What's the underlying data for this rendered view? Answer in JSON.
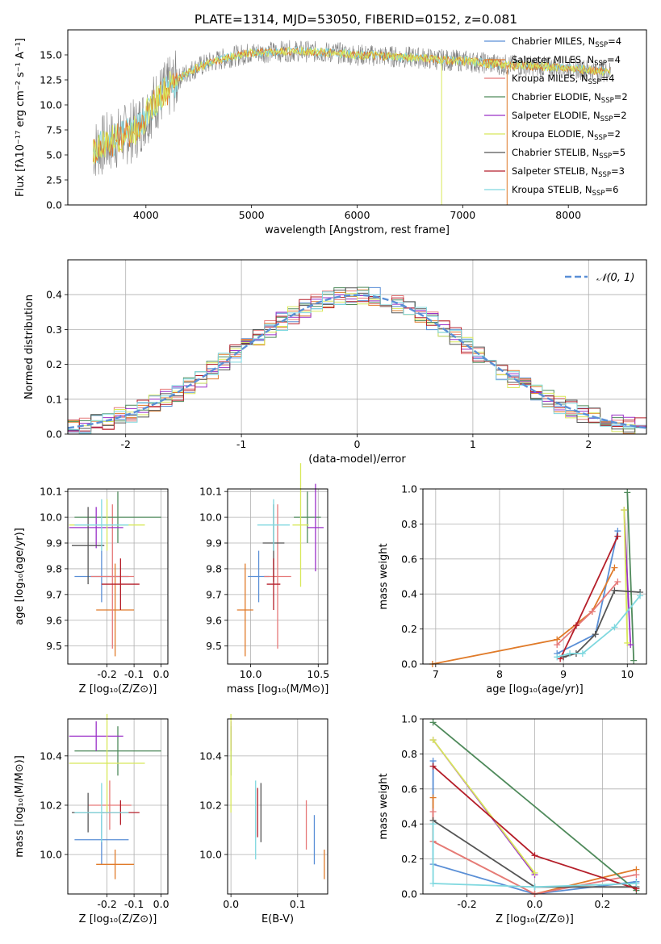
{
  "title": "PLATE=1314, MJD=53050, FIBERID=0152, z=0.081",
  "colors": {
    "s0": "#5a8fd6",
    "s1": "#e07b2a",
    "s2": "#e67a7a",
    "s3": "#4f8a5b",
    "s4": "#9b30c8",
    "s5": "#d8e85a",
    "s6": "#555555",
    "s7": "#b51f2a",
    "s8": "#7fd8df",
    "spectrum": "#808080"
  },
  "chart_data": [
    {
      "type": "line",
      "title": "PLATE=1314, MJD=53050, FIBERID=0152, z=0.081",
      "xlabel": "wavelength [Angstrom, rest frame]",
      "ylabel": "Flux [fλ10⁻¹⁷ erg cm⁻² s⁻¹ A⁻¹]",
      "xlim": [
        3260,
        8740
      ],
      "ylim": [
        0,
        17.5
      ],
      "xticks": [
        4000,
        5000,
        6000,
        7000,
        8000
      ],
      "yticks": [
        0.0,
        2.5,
        5.0,
        7.5,
        10.0,
        12.5,
        15.0
      ],
      "legend_position": "right",
      "data_range": [
        3500,
        8400
      ],
      "continuum": {
        "x": [
          3500,
          3700,
          3800,
          3900,
          4000,
          4100,
          4200,
          4300,
          4400,
          4500,
          4600,
          4700,
          4800,
          4900,
          5000,
          5200,
          5400,
          5600,
          5800,
          6000,
          6200,
          6400,
          6600,
          6800,
          7000,
          7200,
          7400,
          7600,
          7800,
          8000,
          8200,
          8400
        ],
        "y": [
          5.5,
          6.5,
          7.0,
          7.5,
          9.0,
          10.5,
          11.5,
          12.5,
          13.3,
          13.8,
          14.2,
          14.5,
          14.8,
          15.0,
          15.2,
          15.3,
          15.4,
          15.3,
          15.2,
          15.0,
          14.9,
          14.8,
          14.7,
          14.5,
          14.4,
          14.2,
          14.0,
          13.9,
          13.8,
          13.7,
          13.5,
          13.3
        ]
      },
      "series_names": [
        "Chabrier MILES, N_SSP=4",
        "Salpeter MILES, N_SSP=4",
        "Kroupa MILES, N_SSP=4",
        "Chabrier ELODIE, N_SSP=2",
        "Salpeter ELODIE, N_SSP=2",
        "Kroupa ELODIE, N_SSP=2",
        "Chabrier STELIB, N_SSP=5",
        "Salpeter STELIB, N_SSP=3",
        "Kroupa STELIB, N_SSP=6"
      ]
    },
    {
      "type": "line",
      "xlabel": "(data-model)/error",
      "ylabel": "Normed distribution",
      "xlim": [
        -2.5,
        2.5
      ],
      "ylim": [
        0,
        0.5
      ],
      "xticks": [
        -2,
        -1,
        0,
        1,
        2
      ],
      "yticks": [
        0.0,
        0.1,
        0.2,
        0.3,
        0.4
      ],
      "grid": true,
      "legend_position": "top-right",
      "legend": "𝒩(0, 1)",
      "bin_width": 0.1
    },
    {
      "type": "scatter",
      "xlabel": "Z [log₁₀(Z/Z⊙)]",
      "ylabel": "age  [log₁₀(age/yr)]",
      "xlim": [
        -0.345,
        0.025
      ],
      "ylim": [
        9.43,
        10.11
      ],
      "xticks": [
        -0.2,
        -0.1,
        0.0
      ],
      "yticks": [
        9.5,
        9.6,
        9.7,
        9.8,
        9.9,
        10.0,
        10.1
      ],
      "grid": true,
      "points": [
        {
          "x": -0.22,
          "y": 9.77,
          "xerr": 0.1,
          "yerr": 0.1
        },
        {
          "x": -0.17,
          "y": 9.64,
          "xerr": 0.07,
          "yerr": 0.18
        },
        {
          "x": -0.18,
          "y": 9.77,
          "xerr": 0.08,
          "yerr": 0.28
        },
        {
          "x": -0.16,
          "y": 10.0,
          "xerr": 0.16,
          "yerr": 0.1
        },
        {
          "x": -0.24,
          "y": 9.96,
          "xerr": 0.1,
          "yerr": 0.08
        },
        {
          "x": -0.2,
          "y": 9.97,
          "xerr": 0.14,
          "yerr": 0.1
        },
        {
          "x": -0.27,
          "y": 9.89,
          "xerr": 0.06,
          "yerr": 0.15
        },
        {
          "x": -0.15,
          "y": 9.74,
          "xerr": 0.07,
          "yerr": 0.1
        },
        {
          "x": -0.22,
          "y": 9.97,
          "xerr": 0.1,
          "yerr": 0.1
        }
      ]
    },
    {
      "type": "scatter",
      "xlabel": "mass [log₁₀(M/M⊙)]",
      "xlim": [
        9.83,
        10.57
      ],
      "ylim": [
        9.43,
        10.11
      ],
      "xticks": [
        10.0,
        10.5
      ],
      "yticks": [
        9.5,
        9.6,
        9.7,
        9.8,
        9.9,
        10.0,
        10.1
      ],
      "grid": true,
      "points": [
        {
          "x": 10.06,
          "y": 9.77,
          "xerr": 0.08,
          "yerr": 0.1
        },
        {
          "x": 9.96,
          "y": 9.64,
          "xerr": 0.06,
          "yerr": 0.18
        },
        {
          "x": 10.2,
          "y": 9.77,
          "xerr": 0.1,
          "yerr": 0.28
        },
        {
          "x": 10.42,
          "y": 10.0,
          "xerr": 0.1,
          "yerr": 0.1
        },
        {
          "x": 10.48,
          "y": 9.96,
          "xerr": 0.06,
          "yerr": 0.17
        },
        {
          "x": 10.37,
          "y": 9.97,
          "xerr": 0.06,
          "yerr": 0.24
        },
        {
          "x": 10.17,
          "y": 9.9,
          "xerr": 0.08,
          "yerr": 0.15
        },
        {
          "x": 10.17,
          "y": 9.74,
          "xerr": 0.05,
          "yerr": 0.1
        },
        {
          "x": 10.17,
          "y": 9.97,
          "xerr": 0.12,
          "yerr": 0.1
        }
      ]
    },
    {
      "type": "line",
      "xlabel": "age  [log₁₀(age/yr)]",
      "ylabel": "mass weight",
      "xlim": [
        6.8,
        10.3
      ],
      "ylim": [
        0,
        1.0
      ],
      "xticks": [
        7,
        8,
        9,
        10
      ],
      "yticks": [
        0.0,
        0.2,
        0.4,
        0.6,
        0.8,
        1.0
      ],
      "grid": true,
      "series": [
        {
          "x": [
            8.9,
            9.5,
            9.85
          ],
          "y": [
            0.06,
            0.17,
            0.76
          ]
        },
        {
          "x": [
            6.95,
            8.9,
            9.45,
            9.8
          ],
          "y": [
            0.0,
            0.14,
            0.3,
            0.55
          ]
        },
        {
          "x": [
            8.9,
            9.45,
            9.85
          ],
          "y": [
            0.11,
            0.3,
            0.47
          ]
        },
        {
          "x": [
            10.0,
            10.1
          ],
          "y": [
            0.98,
            0.02
          ]
        },
        {
          "x": [
            9.95,
            10.05
          ],
          "y": [
            0.88,
            0.11
          ]
        },
        {
          "x": [
            9.95,
            10.0
          ],
          "y": [
            0.88,
            0.12
          ]
        },
        {
          "x": [
            9.0,
            9.2,
            9.5,
            9.8,
            10.2
          ],
          "y": [
            0.04,
            0.06,
            0.17,
            0.42,
            0.41
          ]
        },
        {
          "x": [
            8.95,
            9.2,
            9.85
          ],
          "y": [
            0.03,
            0.22,
            0.73
          ]
        },
        {
          "x": [
            8.9,
            9.1,
            9.3,
            9.8,
            10.2
          ],
          "y": [
            0.04,
            0.06,
            0.06,
            0.21,
            0.39
          ]
        }
      ]
    },
    {
      "type": "scatter",
      "xlabel": "Z [log₁₀(Z/Z⊙)]",
      "ylabel": "mass [log₁₀(M/M⊙)]",
      "xlim": [
        -0.345,
        0.025
      ],
      "ylim": [
        9.84,
        10.55
      ],
      "xticks": [
        -0.2,
        -0.1,
        0.0
      ],
      "yticks": [
        10.0,
        10.2,
        10.4
      ],
      "grid": true,
      "points": [
        {
          "x": -0.22,
          "y": 10.06,
          "xerr": 0.1,
          "yerr": 0.1
        },
        {
          "x": -0.17,
          "y": 9.96,
          "xerr": 0.07,
          "yerr": 0.06
        },
        {
          "x": -0.19,
          "y": 10.2,
          "xerr": 0.08,
          "yerr": 0.1
        },
        {
          "x": -0.16,
          "y": 10.42,
          "xerr": 0.16,
          "yerr": 0.1
        },
        {
          "x": -0.24,
          "y": 10.48,
          "xerr": 0.1,
          "yerr": 0.06
        },
        {
          "x": -0.2,
          "y": 10.37,
          "xerr": 0.14,
          "yerr": 0.2
        },
        {
          "x": -0.27,
          "y": 10.17,
          "xerr": 0.06,
          "yerr": 0.08
        },
        {
          "x": -0.15,
          "y": 10.17,
          "xerr": 0.07,
          "yerr": 0.05
        },
        {
          "x": -0.22,
          "y": 10.17,
          "xerr": 0.1,
          "yerr": 0.12
        }
      ]
    },
    {
      "type": "scatter",
      "xlabel": "E(B-V)",
      "xlim": [
        -0.005,
        0.145
      ],
      "ylim": [
        9.84,
        10.55
      ],
      "xticks": [
        0.0,
        0.1
      ],
      "yticks": [
        10.0,
        10.2,
        10.4
      ],
      "grid": true,
      "points": [
        {
          "x": 0.125,
          "y": 10.06,
          "yerr": 0.1
        },
        {
          "x": 0.14,
          "y": 9.96,
          "yerr": 0.06
        },
        {
          "x": 0.113,
          "y": 10.12,
          "yerr": 0.1
        },
        {
          "x": 0.0,
          "y": 10.42,
          "yerr": 0.1
        },
        {
          "x": 0.0,
          "y": 10.48,
          "yerr": 0.06
        },
        {
          "x": 0.0,
          "y": 10.37,
          "yerr": 0.2
        },
        {
          "x": 0.045,
          "y": 10.17,
          "yerr": 0.12
        },
        {
          "x": 0.04,
          "y": 10.17,
          "yerr": 0.1
        },
        {
          "x": 0.037,
          "y": 10.14,
          "yerr": 0.16
        }
      ]
    },
    {
      "type": "line",
      "xlabel": "Z [log₁₀(Z/Z⊙)]",
      "ylabel": "mass weight",
      "xlim": [
        -0.33,
        0.33
      ],
      "ylim": [
        0,
        1.0
      ],
      "xticks": [
        -0.2,
        0.0,
        0.2
      ],
      "yticks": [
        0.0,
        0.2,
        0.4,
        0.6,
        0.8,
        1.0
      ],
      "grid": true,
      "series": [
        {
          "x": [
            -0.3,
            -0.3,
            0.0,
            0.3
          ],
          "y": [
            0.76,
            0.17,
            0.0,
            0.07
          ]
        },
        {
          "x": [
            -0.3,
            -0.3,
            0.0,
            0.3
          ],
          "y": [
            0.55,
            0.3,
            0.0,
            0.14
          ]
        },
        {
          "x": [
            -0.3,
            -0.3,
            0.0,
            0.3
          ],
          "y": [
            0.47,
            0.3,
            0.0,
            0.11
          ]
        },
        {
          "x": [
            -0.3,
            0.3
          ],
          "y": [
            0.98,
            0.02
          ]
        },
        {
          "x": [
            -0.3,
            0.0
          ],
          "y": [
            0.88,
            0.11
          ]
        },
        {
          "x": [
            -0.3,
            0.0
          ],
          "y": [
            0.88,
            0.12
          ]
        },
        {
          "x": [
            -0.3,
            0.0,
            0.3
          ],
          "y": [
            0.42,
            0.04,
            0.04
          ]
        },
        {
          "x": [
            -0.3,
            0.0,
            0.3
          ],
          "y": [
            0.73,
            0.22,
            0.03
          ]
        },
        {
          "x": [
            -0.3,
            -0.3,
            0.0,
            0.3
          ],
          "y": [
            0.4,
            0.06,
            0.04,
            0.06
          ]
        }
      ]
    }
  ]
}
